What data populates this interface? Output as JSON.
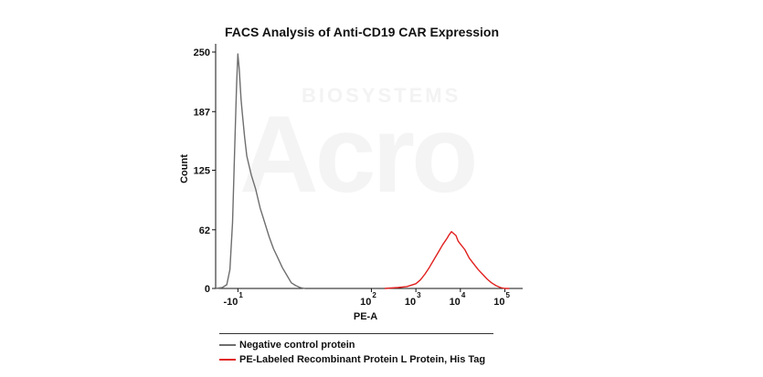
{
  "watermark": {
    "top": "BIOSYSTEMS",
    "main": "Acro"
  },
  "chart_data": {
    "type": "line",
    "title": "FACS Analysis of Anti-CD19 CAR Expression",
    "xlabel": "PE-A",
    "ylabel": "Count",
    "ylim": [
      0,
      250
    ],
    "yticks": [
      0,
      62,
      125,
      187,
      250
    ],
    "xscale": "biexponential",
    "xlim": [
      -1.5,
      5.4
    ],
    "xticks": [
      {
        "pos": -1,
        "base": "-10",
        "exp": "1"
      },
      {
        "pos": 2,
        "base": "10",
        "exp": "2"
      },
      {
        "pos": 3,
        "base": "10",
        "exp": "3"
      },
      {
        "pos": 4,
        "base": "10",
        "exp": "4"
      },
      {
        "pos": 5,
        "base": "10",
        "exp": "5"
      }
    ],
    "grid": false,
    "legend_position": "bottom",
    "series": [
      {
        "name": "Negative control protein",
        "color": "#6e6e6e",
        "x": [
          -1.5,
          -1.35,
          -1.25,
          -1.18,
          -1.12,
          -1.07,
          -1.03,
          -1.0,
          -0.97,
          -0.93,
          -0.9,
          -0.85,
          -0.8,
          -0.7,
          -0.6,
          -0.5,
          -0.4,
          -0.3,
          -0.2,
          -0.1,
          0.0,
          0.1,
          0.2,
          0.3,
          0.4,
          0.5
        ],
        "y": [
          0,
          1,
          4,
          20,
          70,
          150,
          215,
          248,
          232,
          200,
          185,
          160,
          140,
          120,
          105,
          85,
          70,
          55,
          42,
          32,
          22,
          14,
          6,
          3,
          1,
          0
        ]
      },
      {
        "name": "PE-Labeled Recombinant Protein L Protein, His Tag",
        "color": "#e0201e",
        "x": [
          2.3,
          2.6,
          2.8,
          3.0,
          3.1,
          3.2,
          3.3,
          3.4,
          3.5,
          3.6,
          3.7,
          3.75,
          3.8,
          3.85,
          3.9,
          3.95,
          4.0,
          4.1,
          4.2,
          4.3,
          4.4,
          4.5,
          4.6,
          4.7,
          4.8,
          4.9,
          5.0,
          5.1
        ],
        "y": [
          0,
          1,
          2,
          5,
          9,
          15,
          22,
          30,
          38,
          46,
          53,
          57,
          60,
          58,
          56,
          50,
          47,
          41,
          32,
          26,
          20,
          15,
          10,
          6,
          3,
          1,
          0,
          0
        ]
      }
    ]
  }
}
